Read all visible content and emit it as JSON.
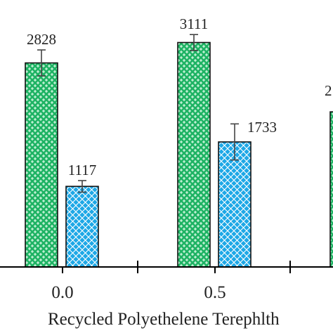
{
  "chart_data": {
    "type": "bar",
    "categories": [
      "0.0",
      "0.5",
      ""
    ],
    "series": [
      {
        "name": "",
        "color": "#1fb364",
        "pattern": "brick-weave",
        "values": [
          2828,
          3111,
          null
        ],
        "errors": [
          180,
          110,
          null
        ],
        "labels": [
          "2828",
          "3111",
          "2"
        ]
      },
      {
        "name": "",
        "color": "#1ea8e6",
        "pattern": "diamond-lattice",
        "values": [
          1117,
          1733,
          null
        ],
        "errors": [
          80,
          250,
          null
        ],
        "labels": [
          "1117",
          "1733",
          ""
        ]
      }
    ],
    "partial_bar_value": 2150,
    "xlabel": "Recycled Polyethelene Terephlth",
    "ylim": [
      0,
      3700
    ],
    "grid": false,
    "legend": "none"
  }
}
